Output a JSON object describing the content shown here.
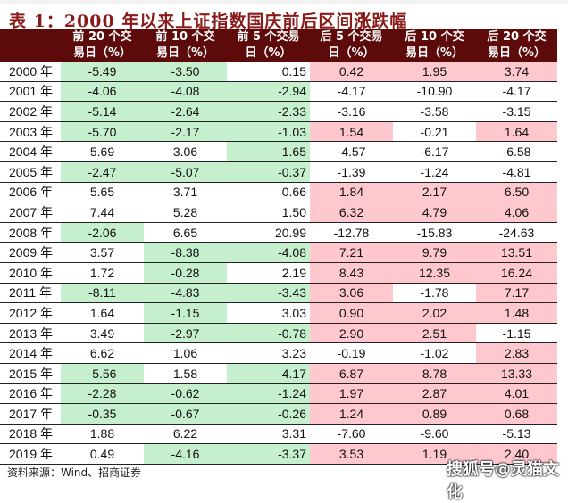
{
  "title": "表 1：2000 年以来上证指数国庆前后区间涨跌幅",
  "columns": [
    "",
    "前 20 个交易日（%）",
    "前 10 个交易日（%）",
    "前 5 个交易日（%）",
    "后 5 个交易日（%）",
    "后 10 个交易日（%）",
    "后 20 个交易日（%）"
  ],
  "rows": [
    {
      "year": "2000 年",
      "values": [
        "-5.49",
        "-3.50",
        "0.15",
        "0.42",
        "1.95",
        "3.74"
      ]
    },
    {
      "year": "2001 年",
      "values": [
        "-4.06",
        "-4.08",
        "-2.94",
        "-4.17",
        "-10.90",
        "-4.17"
      ]
    },
    {
      "year": "2002 年",
      "values": [
        "-5.14",
        "-2.64",
        "-2.33",
        "-3.16",
        "-3.58",
        "-3.15"
      ]
    },
    {
      "year": "2003 年",
      "values": [
        "-5.70",
        "-2.17",
        "-1.03",
        "1.54",
        "-0.21",
        "1.64"
      ]
    },
    {
      "year": "2004 年",
      "values": [
        "5.69",
        "3.06",
        "-1.65",
        "-4.57",
        "-6.17",
        "-6.58"
      ]
    },
    {
      "year": "2005 年",
      "values": [
        "-2.47",
        "-5.07",
        "-0.37",
        "-1.39",
        "-1.24",
        "-4.81"
      ]
    },
    {
      "year": "2006 年",
      "values": [
        "5.65",
        "3.71",
        "0.66",
        "1.84",
        "2.17",
        "6.50"
      ]
    },
    {
      "year": "2007 年",
      "values": [
        "7.44",
        "5.28",
        "1.50",
        "6.32",
        "4.79",
        "4.06"
      ]
    },
    {
      "year": "2008 年",
      "values": [
        "-2.06",
        "6.65",
        "20.99",
        "-12.78",
        "-15.83",
        "-24.63"
      ]
    },
    {
      "year": "2009 年",
      "values": [
        "3.57",
        "-8.38",
        "-4.08",
        "7.21",
        "9.79",
        "13.51"
      ]
    },
    {
      "year": "2010 年",
      "values": [
        "1.72",
        "-0.28",
        "2.19",
        "8.43",
        "12.35",
        "16.24"
      ]
    },
    {
      "year": "2011 年",
      "values": [
        "-8.11",
        "-4.83",
        "-3.43",
        "3.06",
        "-1.78",
        "7.17"
      ]
    },
    {
      "year": "2012 年",
      "values": [
        "1.64",
        "-1.15",
        "3.03",
        "0.90",
        "2.02",
        "1.48"
      ]
    },
    {
      "year": "2013 年",
      "values": [
        "3.49",
        "-2.97",
        "-0.78",
        "2.90",
        "2.51",
        "-1.15"
      ]
    },
    {
      "year": "2014 年",
      "values": [
        "6.62",
        "1.06",
        "3.23",
        "-0.19",
        "-1.02",
        "2.83"
      ]
    },
    {
      "year": "2015 年",
      "values": [
        "-5.56",
        "1.58",
        "-4.17",
        "6.87",
        "8.78",
        "13.33"
      ]
    },
    {
      "year": "2016 年",
      "values": [
        "-2.28",
        "-0.62",
        "-1.24",
        "1.97",
        "2.87",
        "4.01"
      ]
    },
    {
      "year": "2017 年",
      "values": [
        "-0.35",
        "-0.67",
        "-0.26",
        "1.24",
        "0.89",
        "0.68"
      ]
    },
    {
      "year": "2018 年",
      "values": [
        "1.88",
        "6.22",
        "3.31",
        "-7.60",
        "-9.60",
        "-5.13"
      ]
    },
    {
      "year": "2019 年",
      "values": [
        "0.49",
        "-4.16",
        "-3.37",
        "3.53",
        "1.19",
        "2.40"
      ]
    }
  ],
  "highlight": {
    "pre_negative_color": "#c6efce",
    "post_positive_color": "#ffc7ce",
    "header_bg": "#5c0a0a"
  },
  "source": "资料来源：Wind、招商证券",
  "watermark": "搜狐号@灵猫文化"
}
